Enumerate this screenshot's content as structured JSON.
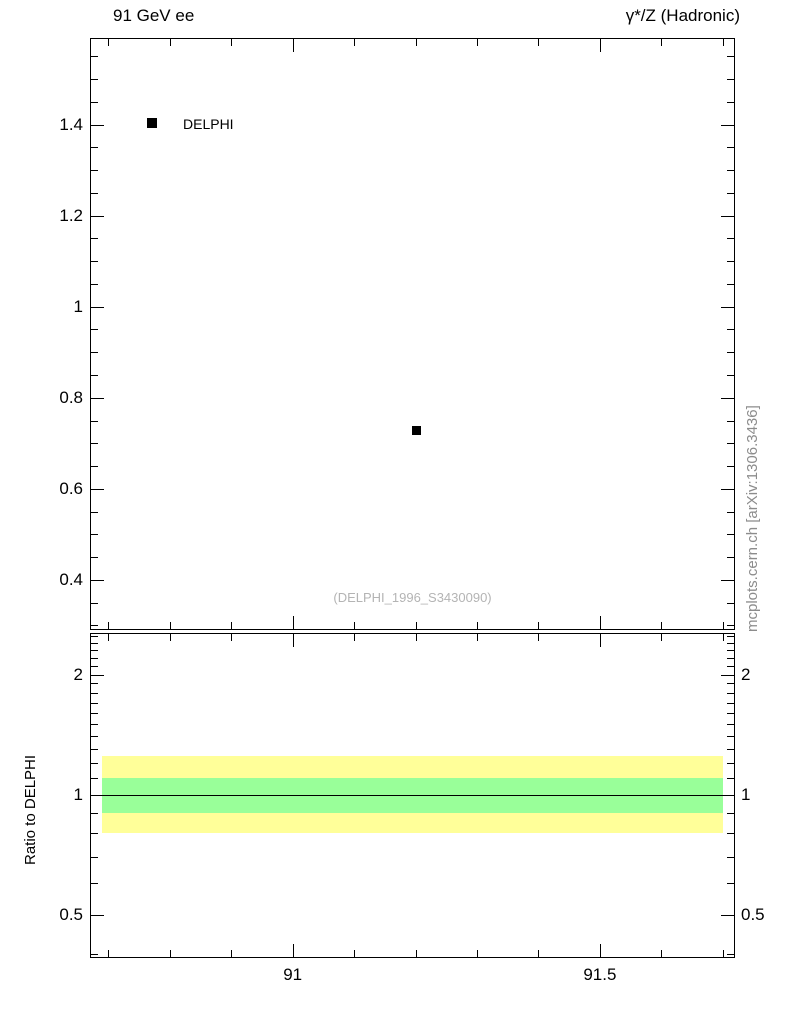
{
  "header": {
    "left": "91 GeV ee",
    "right": "γ*/Z (Hadronic)"
  },
  "legend": [
    {
      "marker": "filled-square",
      "color": "#000000",
      "label": "DELPHI"
    }
  ],
  "watermark": "(DELPHI_1996_S3430090)",
  "side_label": "mcplots.cern.ch [arXiv:1306.3436]",
  "colors": {
    "outer_band": "#ffff99",
    "inner_band": "#99ff99",
    "marker": "#000000",
    "watermark": "#b4b4b4",
    "side_label": "#8c8c8c"
  },
  "chart_data": {
    "type": "scatter",
    "title": "91 GeV ee",
    "right_title": "γ*/Z (Hadronic)",
    "xlabel": "",
    "x_range": [
      90.67,
      91.72
    ],
    "x_ticks": [
      91,
      91.5
    ],
    "x_minor_step": 0.1,
    "main_panel": {
      "ylabel": "",
      "y_scale": "linear",
      "y_range": [
        0.29,
        1.59
      ],
      "y_ticks": [
        0.4,
        0.6,
        0.8,
        1,
        1.2,
        1.4
      ],
      "y_minor_step": 0.05,
      "series": [
        {
          "name": "DELPHI",
          "marker": "filled-square",
          "color": "#000000",
          "points": [
            {
              "x": 91.2,
              "y": 0.73
            }
          ]
        }
      ],
      "watermark": "(DELPHI_1996_S3430090)"
    },
    "ratio_panel": {
      "ylabel": "Ratio to DELPHI",
      "y_scale": "log",
      "y_range": [
        0.39,
        2.54
      ],
      "y_ticks": [
        0.5,
        1,
        2
      ],
      "y_minor_ticks": [
        0.4,
        0.6,
        0.7,
        0.8,
        0.9,
        1.1,
        1.2,
        1.3,
        1.4,
        1.5,
        1.6,
        1.7,
        1.8,
        1.9,
        2.1,
        2.2,
        2.3,
        2.4,
        2.5
      ],
      "reference_line": 1,
      "bands": [
        {
          "name": "outer-uncertainty-band",
          "lo": 0.8,
          "hi": 1.25,
          "color": "#ffff99",
          "x_lo": 90.69,
          "x_hi": 91.7
        },
        {
          "name": "inner-uncertainty-band",
          "lo": 0.9,
          "hi": 1.1,
          "color": "#99ff99",
          "x_lo": 90.69,
          "x_hi": 91.7
        }
      ]
    }
  }
}
